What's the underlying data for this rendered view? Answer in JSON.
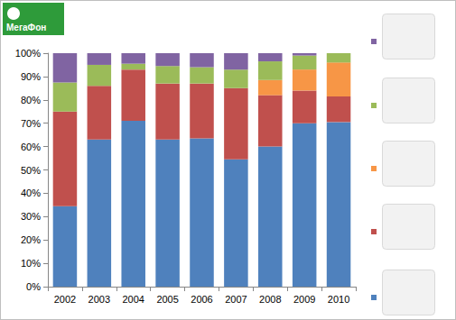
{
  "chart_data": {
    "type": "bar",
    "stacked": true,
    "grid": false,
    "annotations": [
      "МегаФон"
    ],
    "categories": [
      "2002",
      "2003",
      "2004",
      "2005",
      "2006",
      "2007",
      "2008",
      "2009",
      "2010"
    ],
    "ylim": [
      0,
      100
    ],
    "yticks": [
      {
        "value": 0,
        "label": "0%"
      },
      {
        "value": 10,
        "label": "10%"
      },
      {
        "value": 20,
        "label": "20%"
      },
      {
        "value": 30,
        "label": "30%"
      },
      {
        "value": 40,
        "label": "40%"
      },
      {
        "value": 50,
        "label": "50%"
      },
      {
        "value": 60,
        "label": "60%"
      },
      {
        "value": 70,
        "label": "70%"
      },
      {
        "value": 80,
        "label": "80%"
      },
      {
        "value": 90,
        "label": "90%"
      },
      {
        "value": 100,
        "label": "100%"
      }
    ],
    "series": [
      {
        "color": "#4f81bd",
        "values": [
          34.5,
          63,
          71,
          63,
          63.5,
          54.5,
          60,
          70,
          70.5
        ]
      },
      {
        "color": "#c0504d",
        "values": [
          40.5,
          23,
          22,
          24,
          23.5,
          30.5,
          22,
          14,
          11
        ]
      },
      {
        "color": "#f79646",
        "values": [
          0,
          0,
          0,
          0,
          0,
          0,
          6.5,
          9,
          14.5
        ]
      },
      {
        "color": "#9bbb59",
        "values": [
          12.5,
          9,
          2.5,
          7.5,
          7,
          8,
          8,
          6,
          4
        ]
      },
      {
        "color": "#8064a2",
        "values": [
          12.5,
          5,
          4.5,
          5.5,
          6,
          7,
          3.5,
          1,
          0
        ]
      }
    ]
  }
}
